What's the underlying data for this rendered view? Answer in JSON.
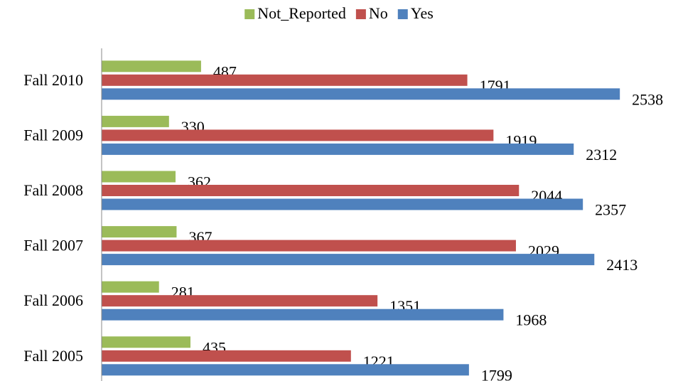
{
  "chart_data": {
    "type": "bar",
    "orientation": "horizontal",
    "categories": [
      "Fall 2010",
      "Fall 2009",
      "Fall 2008",
      "Fall 2007",
      "Fall 2006",
      "Fall 2005"
    ],
    "series": [
      {
        "name": "Not_Reported",
        "color": "#9bbb59",
        "values": [
          487,
          330,
          362,
          367,
          281,
          435
        ]
      },
      {
        "name": "No",
        "color": "#c0504d",
        "values": [
          1791,
          1919,
          2044,
          2029,
          1351,
          1221
        ]
      },
      {
        "name": "Yes",
        "color": "#4f81bd",
        "values": [
          2538,
          2312,
          2357,
          2413,
          1968,
          1799
        ]
      }
    ],
    "xlim": [
      0,
      2600
    ],
    "legend": "top"
  }
}
